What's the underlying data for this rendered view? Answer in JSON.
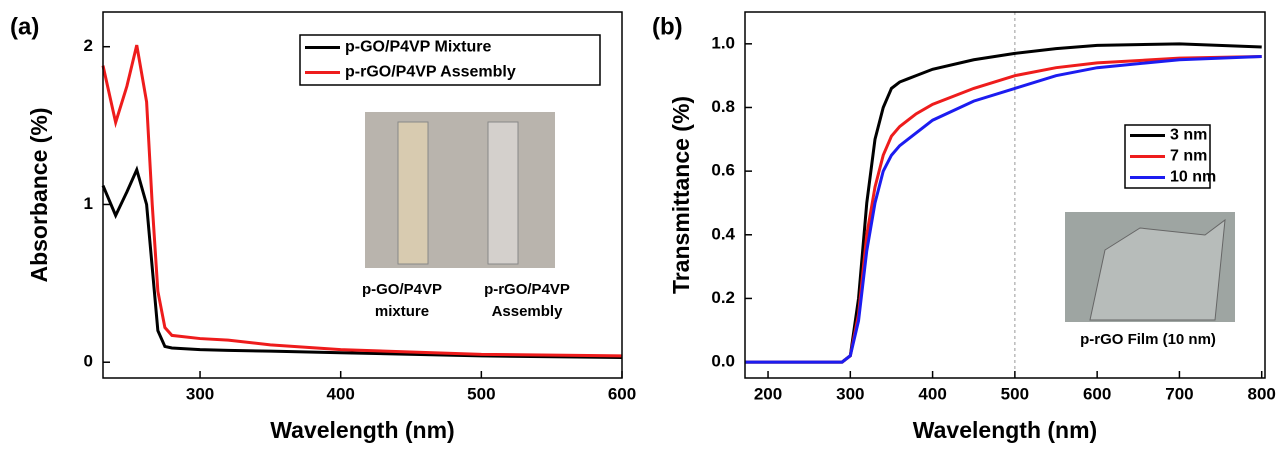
{
  "chart_data": [
    {
      "type": "line",
      "panel_label": "(a)",
      "x_label": "Wavelength (nm)",
      "y_label": "Absorbance (%)",
      "x": [
        231,
        240,
        248,
        255,
        262,
        266,
        270,
        275,
        280,
        300,
        320,
        350,
        400,
        500,
        600
      ],
      "series": [
        {
          "name": "p-GO/P4VP Mixture",
          "color": "#000000",
          "values": [
            1.12,
            0.93,
            1.08,
            1.22,
            1.0,
            0.6,
            0.2,
            0.1,
            0.09,
            0.08,
            0.075,
            0.07,
            0.06,
            0.04,
            0.03
          ]
        },
        {
          "name": "p-rGO/P4VP Assembly",
          "color": "#ee1c1c",
          "values": [
            1.88,
            1.52,
            1.75,
            2.01,
            1.65,
            1.0,
            0.45,
            0.22,
            0.17,
            0.15,
            0.14,
            0.11,
            0.08,
            0.05,
            0.04
          ]
        }
      ],
      "xlim": [
        231,
        600
      ],
      "ylim": [
        -0.1,
        2.22
      ],
      "xticks": [
        300,
        400,
        500,
        600
      ],
      "yticks": [
        0,
        1,
        2
      ],
      "photo_labels": [
        [
          "p-GO/P4VP",
          "mixture"
        ],
        [
          "p-rGO/P4VP",
          "Assembly"
        ]
      ]
    },
    {
      "type": "line",
      "panel_label": "(b)",
      "x_label": "Wavelength (nm)",
      "y_label": "Transmittance (%)",
      "x": [
        172,
        290,
        300,
        310,
        320,
        330,
        340,
        350,
        360,
        370,
        380,
        400,
        450,
        500,
        550,
        600,
        700,
        800
      ],
      "series": [
        {
          "name": "3 nm",
          "color": "#000000",
          "values": [
            0,
            0,
            0.02,
            0.2,
            0.5,
            0.7,
            0.8,
            0.86,
            0.88,
            0.89,
            0.9,
            0.92,
            0.95,
            0.97,
            0.985,
            0.995,
            1.0,
            0.99
          ]
        },
        {
          "name": "7 nm",
          "color": "#ee1c1c",
          "values": [
            0,
            0,
            0.02,
            0.15,
            0.4,
            0.55,
            0.65,
            0.71,
            0.74,
            0.76,
            0.78,
            0.81,
            0.86,
            0.9,
            0.925,
            0.94,
            0.955,
            0.96
          ]
        },
        {
          "name": "10 nm",
          "color": "#1c1cf0",
          "values": [
            0,
            0,
            0.02,
            0.13,
            0.35,
            0.5,
            0.6,
            0.65,
            0.68,
            0.7,
            0.72,
            0.76,
            0.82,
            0.86,
            0.9,
            0.925,
            0.95,
            0.96
          ]
        }
      ],
      "xlim": [
        172,
        804
      ],
      "ylim": [
        -0.05,
        1.1
      ],
      "xticks": [
        200,
        300,
        400,
        500,
        600,
        700,
        800
      ],
      "yticks": [
        {
          "value": 0,
          "label": "0.0"
        },
        0.2,
        0.4,
        0.6,
        0.8,
        {
          "value": 1,
          "label": "1.0"
        }
      ],
      "vline": 500,
      "photo_labels": [
        [
          "p-rGO Film (10 nm)"
        ]
      ]
    }
  ]
}
